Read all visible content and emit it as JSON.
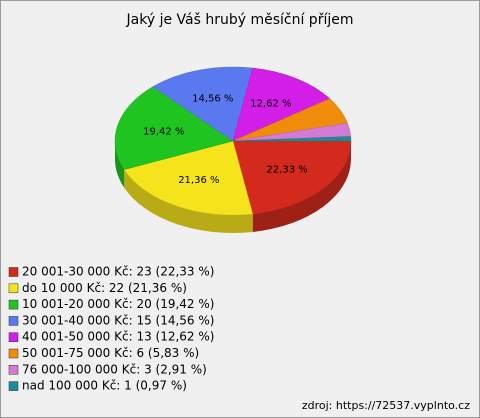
{
  "chart_data": {
    "type": "pie",
    "title": "Jaký je Váš hrubý měsíční příjem",
    "categories": [
      "20 001-30 000 Kč: 23 (22,33 %)",
      "do 10 000 Kč: 22 (21,36 %)",
      "10 001-20 000 Kč: 20 (19,42 %)",
      "30 001-40 000 Kč: 15 (14,56 %)",
      "40 001-50 000 Kč: 13 (12,62 %)",
      "50 001-75 000 Kč: 6 (5,83 %)",
      "76 000-100 000 Kč: 3 (2,91 %)",
      "nad 100 000 Kč: 1 (0,97 %)"
    ],
    "values": [
      22.33,
      21.36,
      19.42,
      14.56,
      12.62,
      5.83,
      2.91,
      0.97
    ],
    "value_labels": [
      "22,33 %",
      "21,36 %",
      "19,42 %",
      "14,56 %",
      "12,62 %",
      null,
      null,
      null
    ],
    "colors": [
      "#d42a1e",
      "#f5e41c",
      "#20c420",
      "#5a78f0",
      "#d21ee6",
      "#f08c0a",
      "#d47ad4",
      "#1e8c96"
    ],
    "source": "zdroj: https://72537.vyplnto.cz"
  }
}
